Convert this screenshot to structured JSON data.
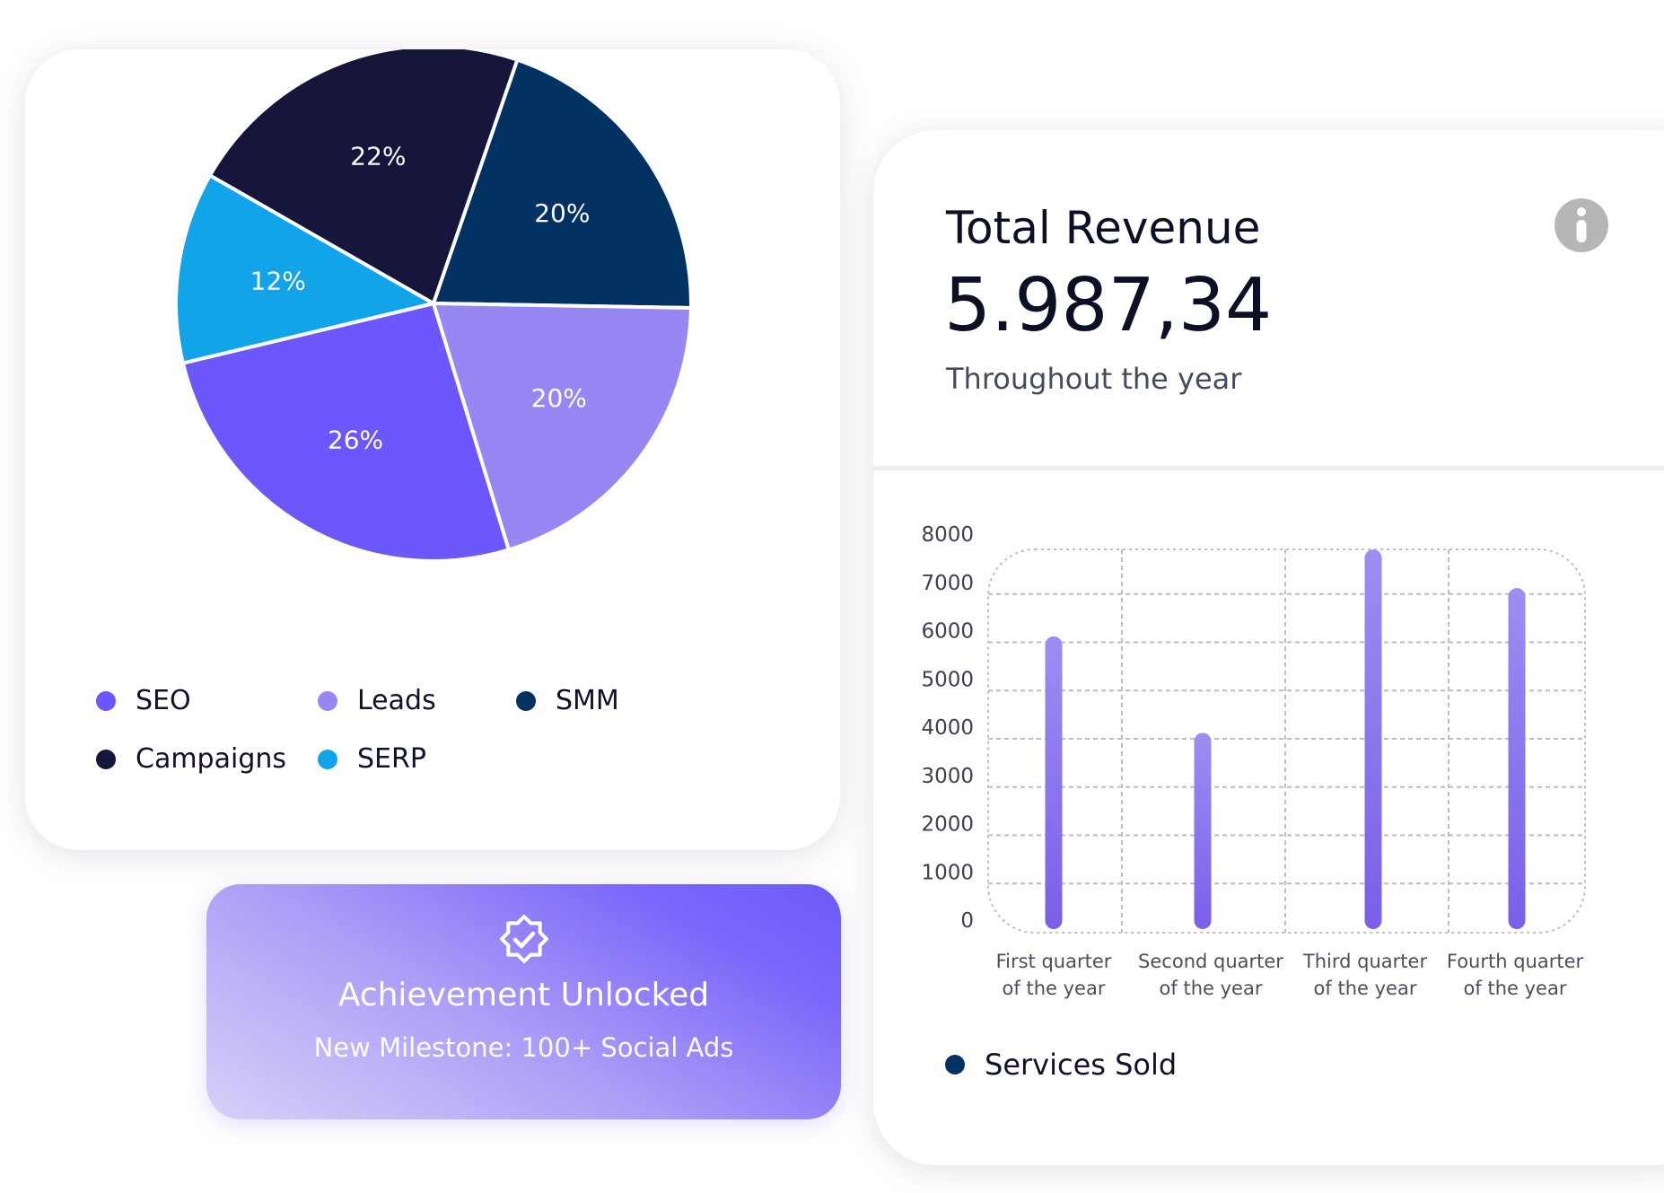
{
  "pie_card": {
    "legend": [
      {
        "label": "SEO",
        "color": "#6b57fc"
      },
      {
        "label": "Leads",
        "color": "#9687f2"
      },
      {
        "label": "SMM",
        "color": "#023262"
      },
      {
        "label": "Campaigns",
        "color": "#16163c"
      },
      {
        "label": "SERP",
        "color": "#12a4e9"
      }
    ]
  },
  "achievement": {
    "title": "Achievement Unlocked",
    "subtitle": "New Milestone: 100+ Social Ads",
    "icon": "verified-badge-icon"
  },
  "revenue_card": {
    "title": "Total Revenue",
    "value": "5.987,34",
    "caption": "Throughout the year",
    "info_icon": "info-icon"
  },
  "chart_data": [
    {
      "type": "pie",
      "slices": [
        {
          "label": "SEO",
          "value": 26,
          "display": "26%",
          "color": "#6b57fc"
        },
        {
          "label": "SERP",
          "value": 12,
          "display": "12%",
          "color": "#12a4e9"
        },
        {
          "label": "Campaigns",
          "value": 22,
          "display": "22%",
          "color": "#16163c"
        },
        {
          "label": "SMM",
          "value": 20,
          "display": "20%",
          "color": "#023262"
        },
        {
          "label": "Leads",
          "value": 20,
          "display": "20%",
          "color": "#9687f2"
        }
      ],
      "legend_placement": "bottom"
    },
    {
      "type": "bar",
      "categories": [
        [
          "First quarter",
          "of the year"
        ],
        [
          "Second quarter",
          "of the year"
        ],
        [
          "Third quarter",
          "of the year"
        ],
        [
          "Fourth quarter",
          "of the year"
        ]
      ],
      "series": [
        {
          "name": "Services Sold",
          "values": [
            5900,
            3900,
            7700,
            6900
          ],
          "color": "#7b64f0"
        }
      ],
      "yticks": [
        0,
        1000,
        2000,
        3000,
        4000,
        5000,
        6000,
        7000,
        8000
      ],
      "ylim": [
        0,
        8000
      ],
      "grid": true,
      "legend_placement": "bottom-left",
      "legend_color": "#023262"
    }
  ]
}
